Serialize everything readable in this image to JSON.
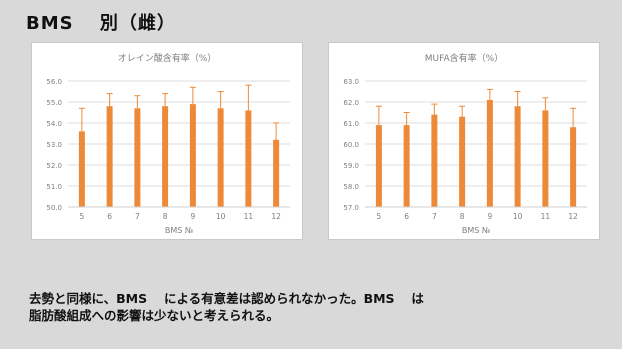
{
  "slide": {
    "title": "BMS　 別（雌）",
    "caption": "去勢と同様に、BMS　 による有意差は認められなかった。BMS　 は\n脂肪酸組成への影響は少ないと考えられる。"
  },
  "colors": {
    "bar": "#ec8a3a",
    "error": "#ec8a3a",
    "grid": "#dedede",
    "axis_text": "#7f7f7f",
    "background": "#d9d9d9"
  },
  "chart_data": [
    {
      "type": "bar",
      "title": "オレイン酸含有率（%）",
      "xlabel": "BMS №",
      "ylabel": "",
      "categories": [
        "5",
        "6",
        "7",
        "8",
        "9",
        "10",
        "11",
        "12"
      ],
      "values": [
        53.6,
        54.8,
        54.7,
        54.8,
        54.9,
        54.7,
        54.6,
        53.2
      ],
      "errors": [
        1.1,
        0.6,
        0.6,
        0.6,
        0.8,
        0.8,
        1.2,
        0.8
      ],
      "ylim": [
        50,
        56
      ],
      "yticks": [
        "50.0",
        "51.0",
        "52.0",
        "53.0",
        "54.0",
        "55.0",
        "56.0"
      ],
      "grid": true,
      "legend": "none"
    },
    {
      "type": "bar",
      "title": "MUFA含有率（%）",
      "xlabel": "BMS №",
      "ylabel": "",
      "categories": [
        "5",
        "6",
        "7",
        "8",
        "9",
        "10",
        "11",
        "12"
      ],
      "values": [
        60.9,
        60.9,
        61.4,
        61.3,
        62.1,
        61.8,
        61.6,
        60.8
      ],
      "errors": [
        0.9,
        0.6,
        0.5,
        0.5,
        0.5,
        0.7,
        0.6,
        0.9
      ],
      "ylim": [
        57,
        63
      ],
      "yticks": [
        "57.0",
        "58.0",
        "59.0",
        "60.0",
        "61.0",
        "62.0",
        "63.0"
      ],
      "grid": true,
      "legend": "none"
    }
  ]
}
